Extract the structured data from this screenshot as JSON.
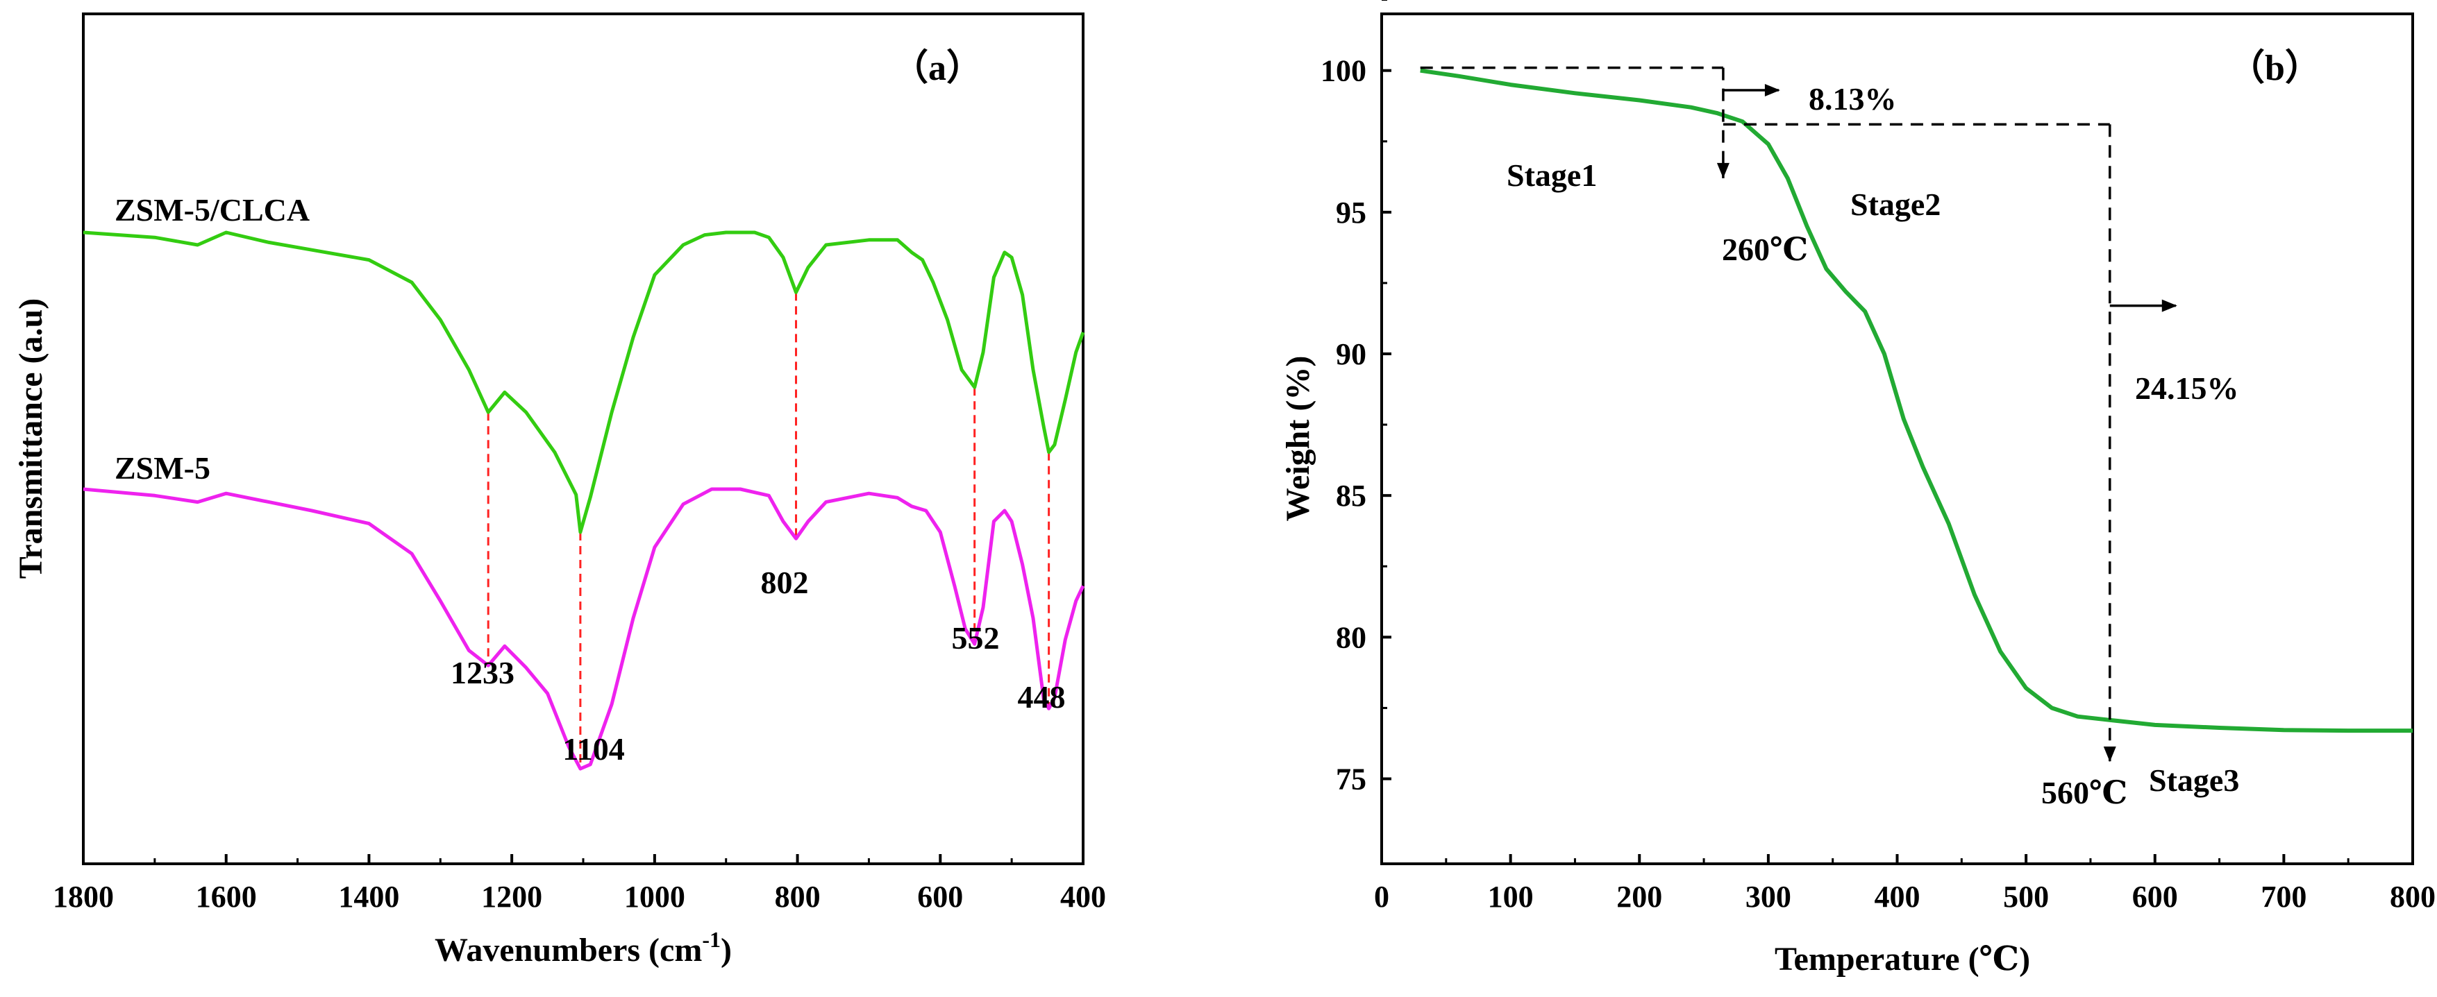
{
  "chart_data": [
    {
      "type": "line",
      "panel_label": "（a）",
      "xlabel_main": "Wavenumbers (cm",
      "xlabel_sup": "-1",
      "xlabel_close": ")",
      "ylabel": "Transmittance (a.u)",
      "xlim": [
        1800,
        400
      ],
      "x_ticks": [
        "1800",
        "1600",
        "1400",
        "1200",
        "1000",
        "800",
        "600",
        "400"
      ],
      "series": [
        {
          "name": "ZSM-5/CLCA",
          "color": "#33cc11",
          "points": [
            [
              1800,
              0.0
            ],
            [
              1700,
              0.02
            ],
            [
              1640,
              0.05
            ],
            [
              1600,
              0.0
            ],
            [
              1540,
              0.04
            ],
            [
              1480,
              0.07
            ],
            [
              1400,
              0.11
            ],
            [
              1340,
              0.2
            ],
            [
              1300,
              0.35
            ],
            [
              1260,
              0.55
            ],
            [
              1233,
              0.72
            ],
            [
              1210,
              0.64
            ],
            [
              1180,
              0.72
            ],
            [
              1140,
              0.88
            ],
            [
              1110,
              1.05
            ],
            [
              1104,
              1.2
            ],
            [
              1090,
              1.06
            ],
            [
              1060,
              0.72
            ],
            [
              1030,
              0.42
            ],
            [
              1000,
              0.17
            ],
            [
              960,
              0.05
            ],
            [
              930,
              0.01
            ],
            [
              900,
              0.0
            ],
            [
              860,
              0.0
            ],
            [
              840,
              0.02
            ],
            [
              820,
              0.1
            ],
            [
              802,
              0.24
            ],
            [
              785,
              0.14
            ],
            [
              760,
              0.05
            ],
            [
              700,
              0.03
            ],
            [
              660,
              0.03
            ],
            [
              640,
              0.08
            ],
            [
              625,
              0.11
            ],
            [
              610,
              0.2
            ],
            [
              590,
              0.35
            ],
            [
              570,
              0.55
            ],
            [
              552,
              0.62
            ],
            [
              540,
              0.48
            ],
            [
              525,
              0.18
            ],
            [
              510,
              0.08
            ],
            [
              500,
              0.1
            ],
            [
              485,
              0.25
            ],
            [
              470,
              0.55
            ],
            [
              455,
              0.78
            ],
            [
              448,
              0.88
            ],
            [
              440,
              0.85
            ],
            [
              425,
              0.67
            ],
            [
              410,
              0.48
            ],
            [
              400,
              0.4
            ]
          ]
        },
        {
          "name": "ZSM-5",
          "color": "#ee22ee",
          "points": [
            [
              1800,
              0.0
            ],
            [
              1700,
              0.03
            ],
            [
              1640,
              0.06
            ],
            [
              1600,
              0.02
            ],
            [
              1540,
              0.06
            ],
            [
              1480,
              0.1
            ],
            [
              1400,
              0.16
            ],
            [
              1340,
              0.3
            ],
            [
              1300,
              0.52
            ],
            [
              1260,
              0.75
            ],
            [
              1233,
              0.82
            ],
            [
              1210,
              0.73
            ],
            [
              1180,
              0.83
            ],
            [
              1150,
              0.95
            ],
            [
              1120,
              1.2
            ],
            [
              1104,
              1.3
            ],
            [
              1090,
              1.28
            ],
            [
              1060,
              1.0
            ],
            [
              1030,
              0.6
            ],
            [
              1000,
              0.27
            ],
            [
              960,
              0.07
            ],
            [
              920,
              0.0
            ],
            [
              880,
              0.0
            ],
            [
              840,
              0.03
            ],
            [
              820,
              0.15
            ],
            [
              802,
              0.23
            ],
            [
              785,
              0.15
            ],
            [
              760,
              0.06
            ],
            [
              700,
              0.02
            ],
            [
              660,
              0.04
            ],
            [
              640,
              0.08
            ],
            [
              620,
              0.1
            ],
            [
              600,
              0.2
            ],
            [
              580,
              0.45
            ],
            [
              565,
              0.65
            ],
            [
              552,
              0.72
            ],
            [
              540,
              0.55
            ],
            [
              525,
              0.15
            ],
            [
              510,
              0.1
            ],
            [
              500,
              0.15
            ],
            [
              485,
              0.35
            ],
            [
              470,
              0.6
            ],
            [
              455,
              0.98
            ],
            [
              448,
              1.02
            ],
            [
              440,
              0.97
            ],
            [
              425,
              0.7
            ],
            [
              410,
              0.52
            ],
            [
              400,
              0.45
            ]
          ]
        }
      ],
      "peak_labels": [
        "1233",
        "1104",
        "802",
        "552",
        "448"
      ],
      "peak_positions": [
        1233,
        1104,
        802,
        552,
        448
      ]
    },
    {
      "type": "line",
      "panel_label": "（b）",
      "xlabel": "Temperature (℃)",
      "ylabel": "Weight (%)",
      "xlim": [
        0,
        800
      ],
      "ylim": [
        72,
        102
      ],
      "x_ticks": [
        "0",
        "100",
        "200",
        "300",
        "400",
        "500",
        "600",
        "700",
        "800"
      ],
      "y_ticks": [
        "75",
        "80",
        "85",
        "90",
        "95",
        "100"
      ],
      "series": [
        {
          "name": "Weight",
          "color": "#22aa33",
          "points": [
            [
              30,
              100.0
            ],
            [
              60,
              99.8
            ],
            [
              100,
              99.5
            ],
            [
              150,
              99.2
            ],
            [
              200,
              98.95
            ],
            [
              240,
              98.7
            ],
            [
              260,
              98.5
            ],
            [
              280,
              98.2
            ],
            [
              300,
              97.4
            ],
            [
              315,
              96.2
            ],
            [
              330,
              94.5
            ],
            [
              345,
              93.0
            ],
            [
              360,
              92.2
            ],
            [
              375,
              91.5
            ],
            [
              390,
              90.0
            ],
            [
              405,
              87.7
            ],
            [
              420,
              86.0
            ],
            [
              440,
              84.0
            ],
            [
              460,
              81.5
            ],
            [
              480,
              79.5
            ],
            [
              500,
              78.2
            ],
            [
              520,
              77.5
            ],
            [
              540,
              77.2
            ],
            [
              560,
              77.1
            ],
            [
              600,
              76.9
            ],
            [
              650,
              76.8
            ],
            [
              700,
              76.72
            ],
            [
              750,
              76.7
            ],
            [
              800,
              76.7
            ]
          ]
        }
      ],
      "annotations": {
        "loss1": "8.13%",
        "loss2": "24.15%",
        "t1": "260℃",
        "t2": "560℃",
        "stage1": "Stage1",
        "stage2": "Stage2",
        "stage3": "Stage3"
      },
      "markers": {
        "t1": 265,
        "t2": 565,
        "y_top": 100.1,
        "y_mid": 98.1,
        "y_t1_arrow": 96.2,
        "y_t2_arrow": 75.6,
        "y_arrow2": 91.7
      }
    }
  ]
}
